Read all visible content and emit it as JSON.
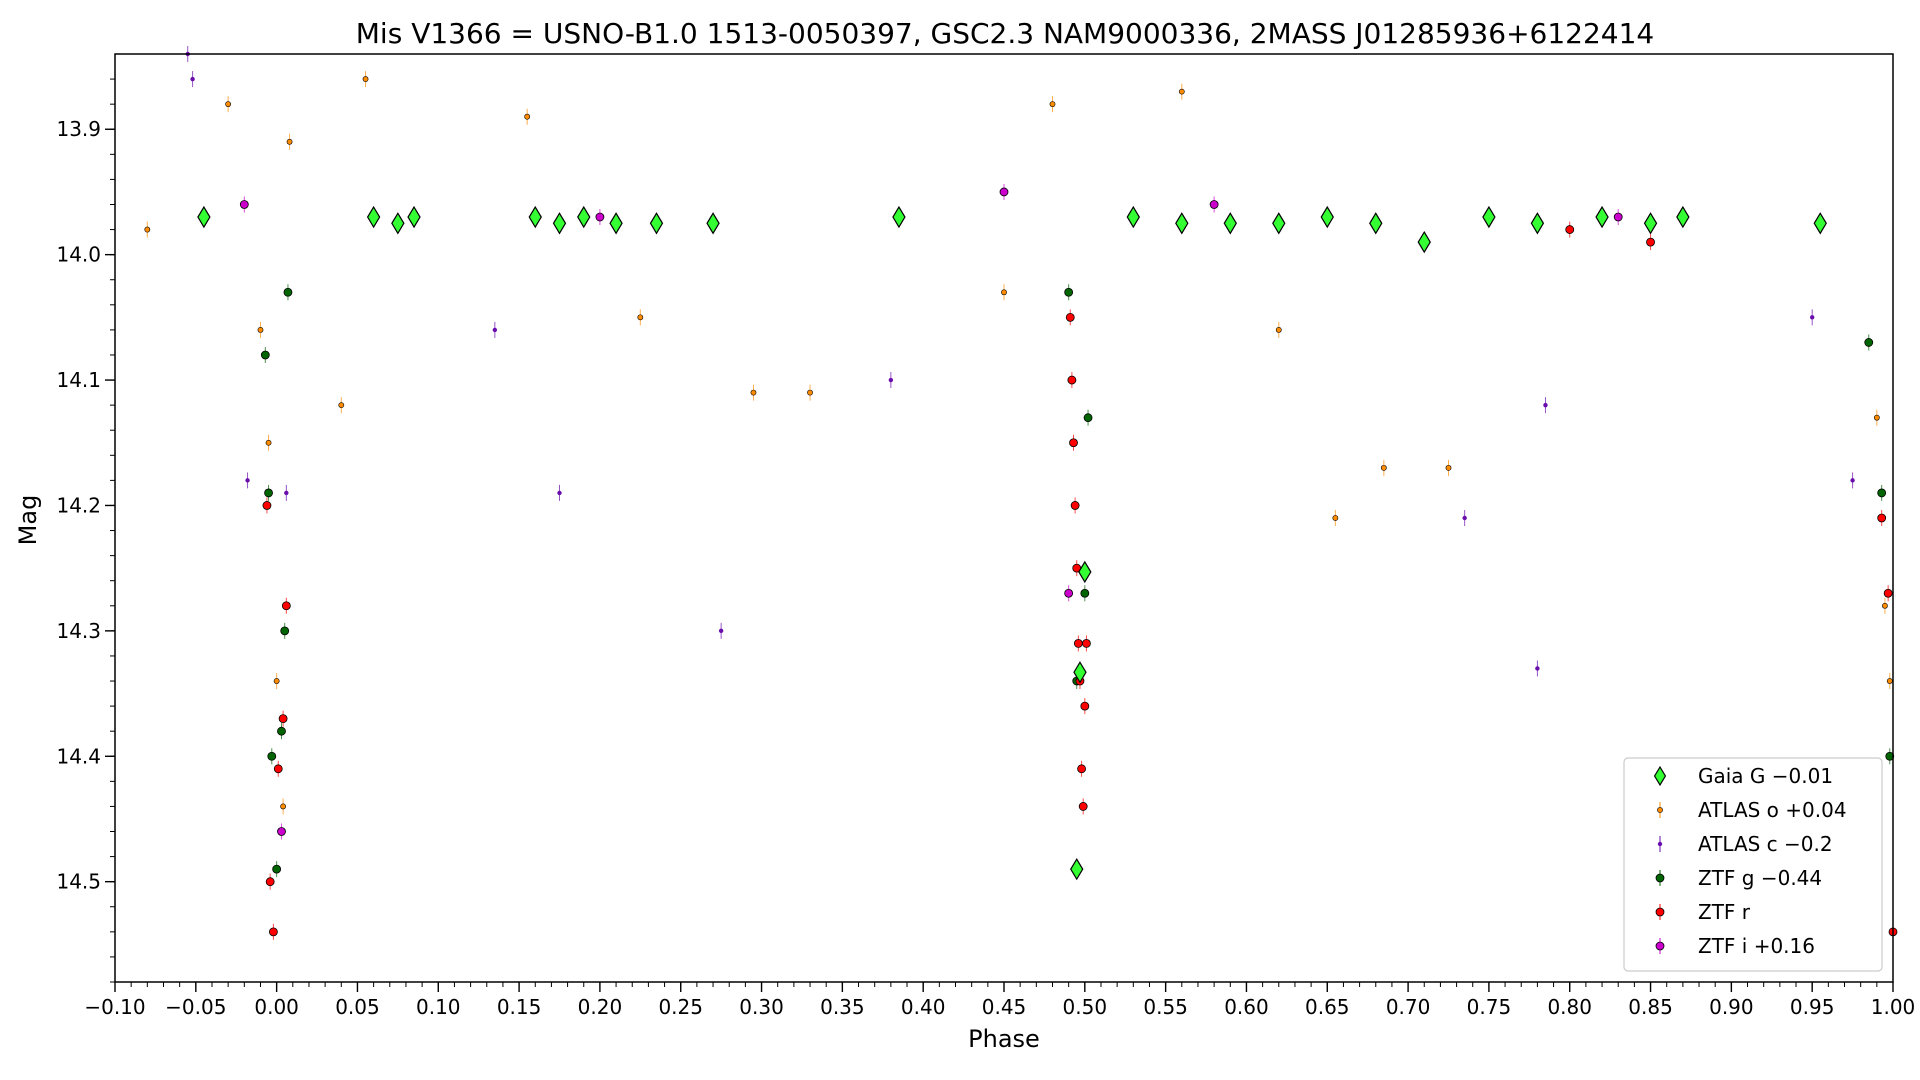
{
  "chart_data": {
    "type": "scatter",
    "title": "Mis V1366 = USNO-B1.0 1513-0050397, GSC2.3 NAM9000336, 2MASS J01285936+6122414",
    "xlabel": "Phase",
    "ylabel": "Mag",
    "xlim": [
      -0.1,
      1.0
    ],
    "ylim": [
      14.58,
      13.84
    ],
    "y_inverted": true,
    "grid": false,
    "legend_position": "bottom-right",
    "x_ticks": [
      "−0.10",
      "−0.05",
      "0.00",
      "0.05",
      "0.10",
      "0.15",
      "0.20",
      "0.25",
      "0.30",
      "0.35",
      "0.40",
      "0.45",
      "0.50",
      "0.55",
      "0.60",
      "0.65",
      "0.70",
      "0.75",
      "0.80",
      "0.85",
      "0.90",
      "0.95",
      "1.00"
    ],
    "x_tick_values": [
      -0.1,
      -0.05,
      0.0,
      0.05,
      0.1,
      0.15,
      0.2,
      0.25,
      0.3,
      0.35,
      0.4,
      0.45,
      0.5,
      0.55,
      0.6,
      0.65,
      0.7,
      0.75,
      0.8,
      0.85,
      0.9,
      0.95,
      1.0
    ],
    "y_ticks": [
      "13.9",
      "14.0",
      "14.1",
      "14.2",
      "14.3",
      "14.4",
      "14.5"
    ],
    "y_tick_values": [
      13.9,
      14.0,
      14.1,
      14.2,
      14.3,
      14.4,
      14.5
    ],
    "series": [
      {
        "name": "Gaia G −0.01",
        "marker": "diamond",
        "color": "#33ff33",
        "x": [
          -0.045,
          0.06,
          0.075,
          0.085,
          0.16,
          0.175,
          0.19,
          0.21,
          0.235,
          0.27,
          0.385,
          0.495,
          0.497,
          0.5,
          0.53,
          0.56,
          0.59,
          0.62,
          0.65,
          0.68,
          0.71,
          0.75,
          0.78,
          0.82,
          0.85,
          0.87,
          0.955
        ],
        "y": [
          13.97,
          13.97,
          13.975,
          13.97,
          13.97,
          13.975,
          13.97,
          13.975,
          13.975,
          13.975,
          13.97,
          14.49,
          14.333,
          14.253,
          13.97,
          13.975,
          13.975,
          13.975,
          13.97,
          13.975,
          13.99,
          13.97,
          13.975,
          13.97,
          13.975,
          13.97,
          13.975
        ]
      },
      {
        "name": "ATLAS o +0.04",
        "marker": "circle-small",
        "color": "#ff8c00",
        "x": [
          -0.08,
          -0.03,
          -0.01,
          -0.005,
          0.0,
          0.004,
          0.008,
          0.04,
          0.055,
          0.155,
          0.225,
          0.295,
          0.33,
          0.45,
          0.48,
          0.56,
          0.62,
          0.655,
          0.685,
          0.725,
          0.99,
          0.995,
          0.998
        ],
        "y": [
          13.98,
          13.88,
          14.06,
          14.15,
          14.34,
          14.44,
          13.91,
          14.12,
          13.86,
          13.89,
          14.05,
          14.11,
          14.11,
          14.03,
          13.88,
          13.87,
          14.06,
          14.21,
          14.17,
          14.17,
          14.13,
          14.28,
          14.34
        ]
      },
      {
        "name": "ATLAS c −0.2",
        "marker": "dot",
        "color": "#6a0dad",
        "x": [
          -0.055,
          -0.052,
          -0.018,
          0.006,
          0.135,
          0.175,
          0.275,
          0.38,
          0.735,
          0.78,
          0.785,
          0.95,
          0.975
        ],
        "y": [
          13.84,
          13.86,
          14.18,
          14.19,
          14.06,
          14.19,
          14.3,
          14.1,
          14.21,
          14.33,
          14.12,
          14.05,
          14.18
        ]
      },
      {
        "name": "ZTF g −0.44",
        "marker": "circle",
        "color": "#006400",
        "x": [
          -0.007,
          -0.005,
          -0.003,
          0.0,
          0.003,
          0.005,
          0.007,
          0.49,
          0.495,
          0.5,
          0.502,
          0.985,
          0.993,
          0.998
        ],
        "y": [
          14.08,
          14.19,
          14.4,
          14.49,
          14.38,
          14.3,
          14.03,
          14.03,
          14.34,
          14.27,
          14.13,
          14.07,
          14.19,
          14.4
        ]
      },
      {
        "name": "ZTF r",
        "marker": "circle",
        "color": "#ff0000",
        "x": [
          -0.006,
          -0.004,
          -0.002,
          0.001,
          0.004,
          0.006,
          0.491,
          0.492,
          0.493,
          0.494,
          0.495,
          0.496,
          0.497,
          0.498,
          0.499,
          0.5,
          0.501,
          0.8,
          0.85,
          0.993,
          0.997,
          1.0
        ],
        "y": [
          14.2,
          14.5,
          14.54,
          14.41,
          14.37,
          14.28,
          14.05,
          14.1,
          14.15,
          14.2,
          14.25,
          14.31,
          14.34,
          14.41,
          14.44,
          14.36,
          14.31,
          13.98,
          13.99,
          14.21,
          14.27,
          14.54
        ]
      },
      {
        "name": "ZTF i +0.16",
        "marker": "circle",
        "color": "#cc00cc",
        "x": [
          -0.02,
          0.003,
          0.2,
          0.45,
          0.49,
          0.58,
          0.83
        ],
        "y": [
          13.96,
          14.46,
          13.97,
          13.95,
          14.27,
          13.96,
          13.97
        ]
      }
    ]
  }
}
